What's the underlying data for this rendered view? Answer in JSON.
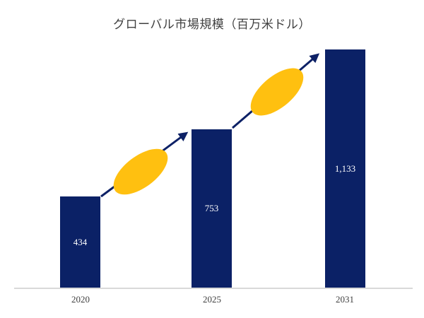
{
  "chart_data": {
    "type": "bar",
    "title": "グローバル市場規模（百万米ドル）",
    "categories": [
      "2020",
      "2025",
      "2031"
    ],
    "values": [
      434,
      753,
      1133
    ],
    "value_labels": [
      "434",
      "753",
      "1,133"
    ],
    "xlabel": "",
    "ylabel": "",
    "ylim": [
      0,
      1200
    ],
    "grid": false,
    "legend": false,
    "annotations": [
      {
        "type": "growth-arrow",
        "from": "2020",
        "to": "2025"
      },
      {
        "type": "growth-arrow",
        "from": "2025",
        "to": "2031"
      },
      {
        "type": "ellipse-marker",
        "between": [
          "2020",
          "2025"
        ]
      },
      {
        "type": "ellipse-marker",
        "between": [
          "2025",
          "2031"
        ]
      }
    ]
  },
  "colors": {
    "background": "#ffffff",
    "bar": "#0b2166",
    "arrow": "#0d2166",
    "ellipse": "#ffc010",
    "axis_line": "#d9d9d9",
    "title_text": "#3f3f3f",
    "tick_text": "#3f3f3f",
    "value_text": "#ffffff"
  }
}
